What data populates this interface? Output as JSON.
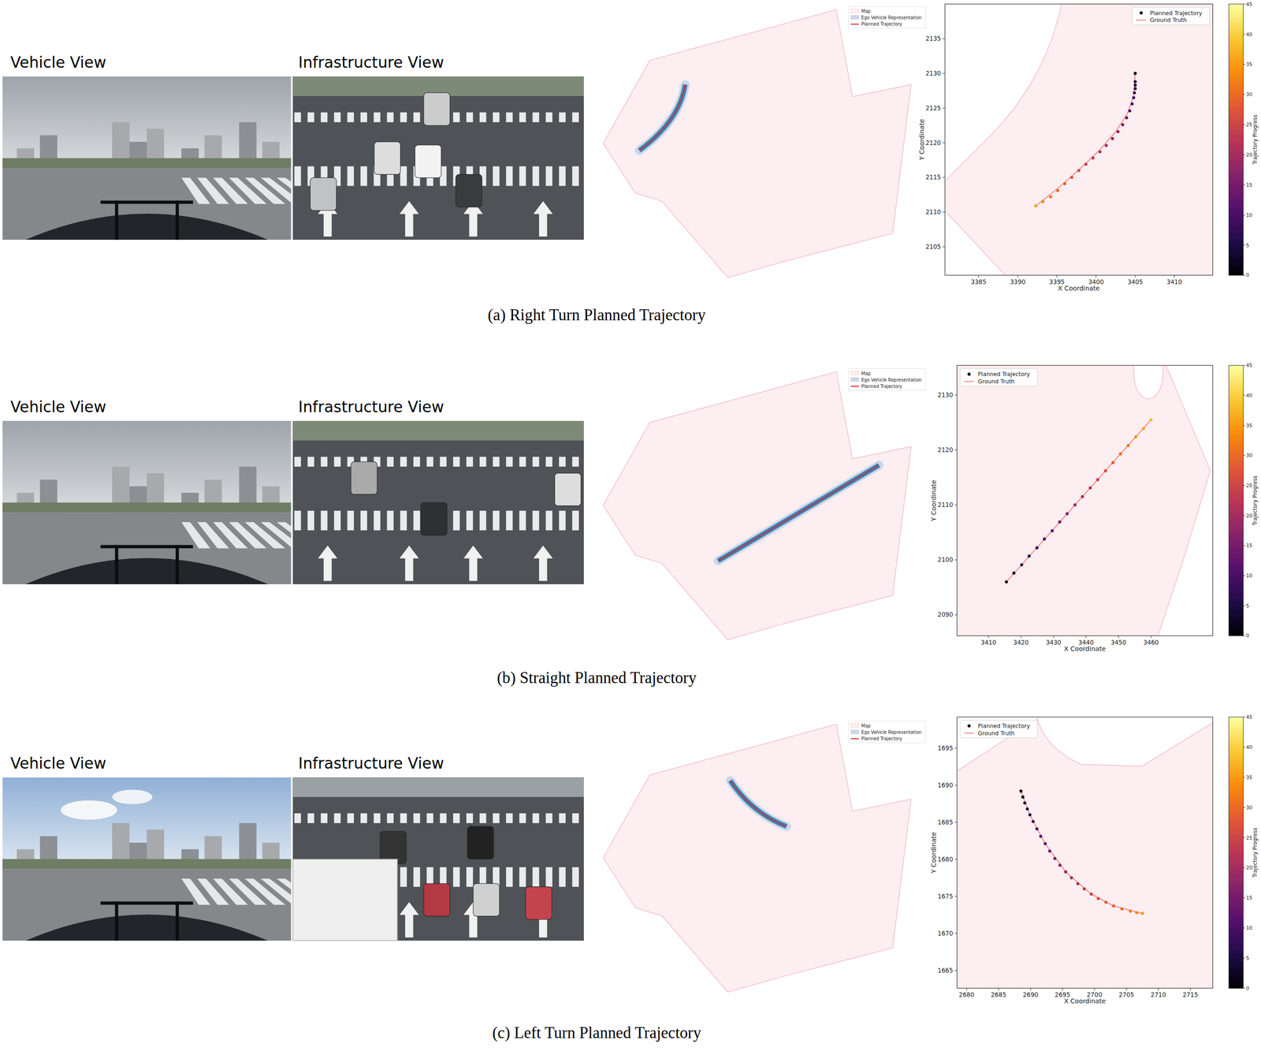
{
  "figure": {
    "panels": [
      {
        "vehicle_view_label": "Vehicle View",
        "infrastructure_view_label": "Infrastructure View",
        "map_legend": [
          "Map",
          "Ego Vehicle Representation",
          "Planned Trajectory"
        ],
        "caption": "(a) Right Turn Planned Trajectory"
      },
      {
        "vehicle_view_label": "Vehicle View",
        "infrastructure_view_label": "Infrastructure View",
        "map_legend": [
          "Map",
          "Ego Vehicle Representation",
          "Planned Trajectory"
        ],
        "caption": "(b) Straight Planned Trajectory"
      },
      {
        "vehicle_view_label": "Vehicle View",
        "infrastructure_view_label": "Infrastructure View",
        "map_legend": [
          "Map",
          "Ego Vehicle Representation",
          "Planned Trajectory"
        ],
        "caption": "(c) Left Turn Planned Trajectory"
      }
    ]
  },
  "chart_data": [
    {
      "type": "scatter",
      "x_label": "X Coordinate",
      "y_label": "Y Coordinate",
      "xlim": [
        3380.7,
        3414.9
      ],
      "ylim": [
        2100.9,
        2140.0
      ],
      "xticks": [
        3385,
        3390,
        3395,
        3400,
        3405,
        3410
      ],
      "yticks": [
        2105,
        2110,
        2115,
        2120,
        2125,
        2130,
        2135
      ],
      "legend": "upper right",
      "series": [
        {
          "name": "Planned Trajectory",
          "type": "scatter",
          "marker": "circle",
          "color": "#000000",
          "x": [
            3405.0,
            3405.0,
            3405.0,
            3405.0,
            3404.9,
            3404.8,
            3404.6,
            3404.3,
            3403.9,
            3403.4,
            3402.8,
            3402.1,
            3401.3,
            3400.5,
            3399.6,
            3398.7,
            3397.8,
            3396.9,
            3396.0,
            3395.1,
            3394.2,
            3393.2,
            3392.3
          ],
          "values": [
            2130.0,
            2128.8,
            2128.3,
            2127.8,
            2127.2,
            2126.5,
            2125.6,
            2124.6,
            2123.6,
            2122.6,
            2121.6,
            2120.6,
            2119.6,
            2118.7,
            2117.8,
            2116.9,
            2116.0,
            2115.0,
            2114.1,
            2113.1,
            2112.2,
            2111.5,
            2110.9
          ],
          "progress": [
            0,
            4,
            5,
            6,
            8,
            9,
            11,
            12,
            14,
            15,
            17,
            18,
            20,
            21,
            23,
            24,
            26,
            27,
            29,
            30,
            32,
            33,
            35
          ]
        },
        {
          "name": "Ground Truth",
          "type": "line",
          "line_style": "solid",
          "color": "#f28b82",
          "x": [
            3405.0,
            3404.8,
            3404.0,
            3402.5,
            3400.5,
            3398.0,
            3395.2,
            3392.3
          ],
          "values": [
            2130.0,
            2126.8,
            2124.2,
            2121.6,
            2119.0,
            2116.3,
            2113.5,
            2110.9
          ]
        }
      ],
      "colorbar": {
        "label": "Trajectory Progress",
        "range": [
          0,
          45
        ],
        "ticks": [
          0,
          5,
          10,
          15,
          20,
          25,
          30,
          35,
          40,
          45
        ]
      }
    },
    {
      "type": "scatter",
      "x_label": "X Coordinate",
      "y_label": "Y Coordinate",
      "xlim": [
        3400.3,
        3479.0
      ],
      "ylim": [
        2086.2,
        2135.4
      ],
      "xticks": [
        3410,
        3420,
        3430,
        3440,
        3450,
        3460
      ],
      "yticks": [
        2090,
        2100,
        2110,
        2120,
        2130
      ],
      "legend": "upper left",
      "series": [
        {
          "name": "Planned Trajectory",
          "type": "scatter",
          "marker": "circle",
          "color": "#000000",
          "x": [
            3415.5,
            3417.8,
            3420.2,
            3422.5,
            3424.9,
            3427.2,
            3429.6,
            3431.9,
            3434.2,
            3436.6,
            3438.9,
            3441.3,
            3443.6,
            3446.0,
            3448.3,
            3450.6,
            3453.0,
            3455.3,
            3457.7,
            3460.0
          ],
          "values": [
            2096.0,
            2097.6,
            2099.1,
            2100.7,
            2102.2,
            2103.8,
            2105.3,
            2106.9,
            2108.4,
            2110.0,
            2111.5,
            2113.1,
            2114.6,
            2116.2,
            2117.7,
            2119.3,
            2120.8,
            2122.4,
            2123.9,
            2125.5
          ],
          "progress": [
            0,
            2,
            4,
            6,
            8,
            10,
            12,
            14,
            16,
            18,
            20,
            22,
            24,
            26,
            28,
            30,
            32,
            34,
            36,
            38
          ]
        },
        {
          "name": "Ground Truth",
          "type": "line",
          "line_style": "solid",
          "color": "#f28b82",
          "x": [
            3415.5,
            3460.0
          ],
          "values": [
            2096.0,
            2125.5
          ]
        }
      ],
      "colorbar": {
        "label": "Trajectory Progress",
        "range": [
          0,
          45
        ],
        "ticks": [
          0,
          5,
          10,
          15,
          20,
          25,
          30,
          35,
          40,
          45
        ]
      }
    },
    {
      "type": "scatter",
      "x_label": "X Coordinate",
      "y_label": "Y Coordinate",
      "xlim": [
        2678.5,
        2718.5
      ],
      "ylim": [
        1662.6,
        1699.2
      ],
      "xticks": [
        2680,
        2685,
        2690,
        2695,
        2700,
        2705,
        2710,
        2715
      ],
      "yticks": [
        1665,
        1670,
        1675,
        1680,
        1685,
        1690,
        1695
      ],
      "legend": "upper left",
      "series": [
        {
          "name": "Planned Trajectory",
          "type": "scatter",
          "marker": "circle",
          "color": "#000000",
          "x": [
            2688.5,
            2688.8,
            2689.1,
            2689.5,
            2689.9,
            2690.4,
            2691.0,
            2691.6,
            2692.3,
            2693.0,
            2693.8,
            2694.6,
            2695.5,
            2696.4,
            2697.4,
            2698.4,
            2699.5,
            2700.6,
            2701.8,
            2703.0,
            2704.3,
            2705.6,
            2706.6,
            2707.5
          ],
          "values": [
            1689.2,
            1688.4,
            1687.6,
            1686.8,
            1686.0,
            1685.1,
            1684.1,
            1683.1,
            1682.1,
            1681.1,
            1680.1,
            1679.2,
            1678.3,
            1677.5,
            1676.7,
            1676.0,
            1675.3,
            1674.7,
            1674.2,
            1673.7,
            1673.3,
            1673.0,
            1672.8,
            1672.7
          ],
          "progress": [
            0,
            2,
            3,
            5,
            6,
            8,
            9,
            11,
            12,
            14,
            15,
            17,
            18,
            20,
            21,
            23,
            24,
            26,
            27,
            29,
            30,
            32,
            33,
            35
          ]
        },
        {
          "name": "Ground Truth",
          "type": "line",
          "line_style": "solid",
          "color": "#f28b82",
          "x": [
            2688.5,
            2689.9,
            2692.3,
            2695.5,
            2699.5,
            2703.0,
            2707.5
          ],
          "values": [
            1689.2,
            1686.0,
            1682.1,
            1678.3,
            1675.3,
            1673.7,
            1672.7
          ]
        }
      ],
      "colorbar": {
        "label": "Trajectory Progress",
        "range": [
          0,
          45
        ],
        "ticks": [
          0,
          5,
          10,
          15,
          20,
          25,
          30,
          35,
          40,
          45
        ]
      }
    }
  ]
}
